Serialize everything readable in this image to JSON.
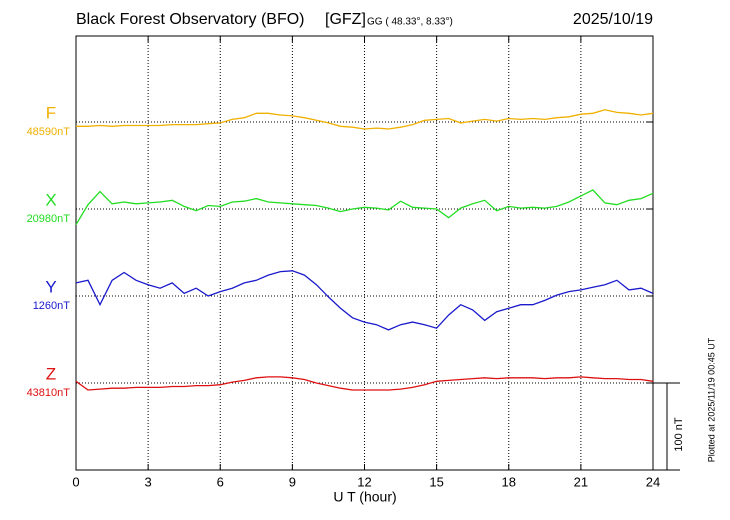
{
  "chart_data": {
    "type": "line",
    "title": "Black Forest Observatory (BFO)",
    "institute": "[GFZ]",
    "coordinates": "GG ( 48.33°,   8.33°)",
    "date": "2025/10/19",
    "xlabel": "U T (hour)",
    "plotted_note": "Plotted at 2025/11/19 00:45 UT",
    "scale_bar": {
      "value": 100,
      "label": "100 nT"
    },
    "xlim": [
      0,
      24
    ],
    "xticks": [
      0,
      3,
      6,
      9,
      12,
      15,
      18,
      21,
      24
    ],
    "grid": true,
    "x": [
      0,
      0.5,
      1,
      1.5,
      2,
      2.5,
      3,
      3.5,
      4,
      4.5,
      5,
      5.5,
      6,
      6.5,
      7,
      7.5,
      8,
      8.5,
      9,
      9.5,
      10,
      10.5,
      11,
      11.5,
      12,
      12.5,
      13,
      13.5,
      14,
      14.5,
      15,
      15.5,
      16,
      16.5,
      17,
      17.5,
      18,
      18.5,
      19,
      19.5,
      20,
      20.5,
      21,
      21.5,
      22,
      22.5,
      23,
      23.5,
      24
    ],
    "series": [
      {
        "name": "F",
        "color": "#f0b000",
        "baseline": {
          "value": 48590,
          "label": "48590nT"
        },
        "values": [
          48585,
          48585,
          48586,
          48585,
          48586,
          48586,
          48586,
          48586,
          48587,
          48587,
          48587,
          48588,
          48589,
          48593,
          48595,
          48600,
          48600,
          48598,
          48597,
          48595,
          48592,
          48589,
          48585,
          48584,
          48582,
          48583,
          48582,
          48584,
          48587,
          48592,
          48593,
          48594,
          48589,
          48591,
          48593,
          48591,
          48594,
          48593,
          48594,
          48593,
          48595,
          48596,
          48599,
          48600,
          48604,
          48601,
          48600,
          48598,
          48600
        ]
      },
      {
        "name": "X",
        "color": "#22dd22",
        "baseline": {
          "value": 20980,
          "label": "20980nT"
        },
        "values": [
          20962,
          20985,
          21000,
          20986,
          20988,
          20986,
          20987,
          20988,
          20990,
          20983,
          20978,
          20984,
          20983,
          20988,
          20989,
          20992,
          20988,
          20987,
          20986,
          20985,
          20984,
          20981,
          20977,
          20980,
          20982,
          20981,
          20979,
          20989,
          20982,
          20981,
          20980,
          20970,
          20981,
          20986,
          20990,
          20978,
          20983,
          20981,
          20982,
          20981,
          20983,
          20988,
          20995,
          21002,
          20987,
          20985,
          20990,
          20992,
          20998
        ]
      },
      {
        "name": "Y",
        "color": "#1a1acc",
        "baseline": {
          "value": 1260,
          "label": "1260nT"
        },
        "values": [
          1275,
          1278,
          1250,
          1278,
          1287,
          1278,
          1273,
          1269,
          1275,
          1263,
          1269,
          1260,
          1265,
          1269,
          1275,
          1278,
          1284,
          1288,
          1289,
          1284,
          1273,
          1259,
          1246,
          1235,
          1230,
          1227,
          1221,
          1227,
          1230,
          1227,
          1223,
          1238,
          1250,
          1244,
          1232,
          1242,
          1246,
          1250,
          1250,
          1255,
          1261,
          1265,
          1267,
          1270,
          1273,
          1278,
          1267,
          1269,
          1263
        ]
      },
      {
        "name": "Z",
        "color": "#dd1111",
        "baseline": {
          "value": 43810,
          "label": "43810nT"
        },
        "values": [
          43812,
          43802,
          43803,
          43804,
          43804,
          43805,
          43805,
          43805,
          43806,
          43806,
          43807,
          43807,
          43808,
          43811,
          43813,
          43816,
          43817,
          43817,
          43816,
          43814,
          43810,
          43807,
          43804,
          43802,
          43802,
          43802,
          43802,
          43803,
          43805,
          43808,
          43812,
          43813,
          43814,
          43815,
          43816,
          43815,
          43816,
          43816,
          43816,
          43815,
          43816,
          43816,
          43817,
          43816,
          43815,
          43815,
          43814,
          43814,
          43812
        ]
      }
    ]
  }
}
